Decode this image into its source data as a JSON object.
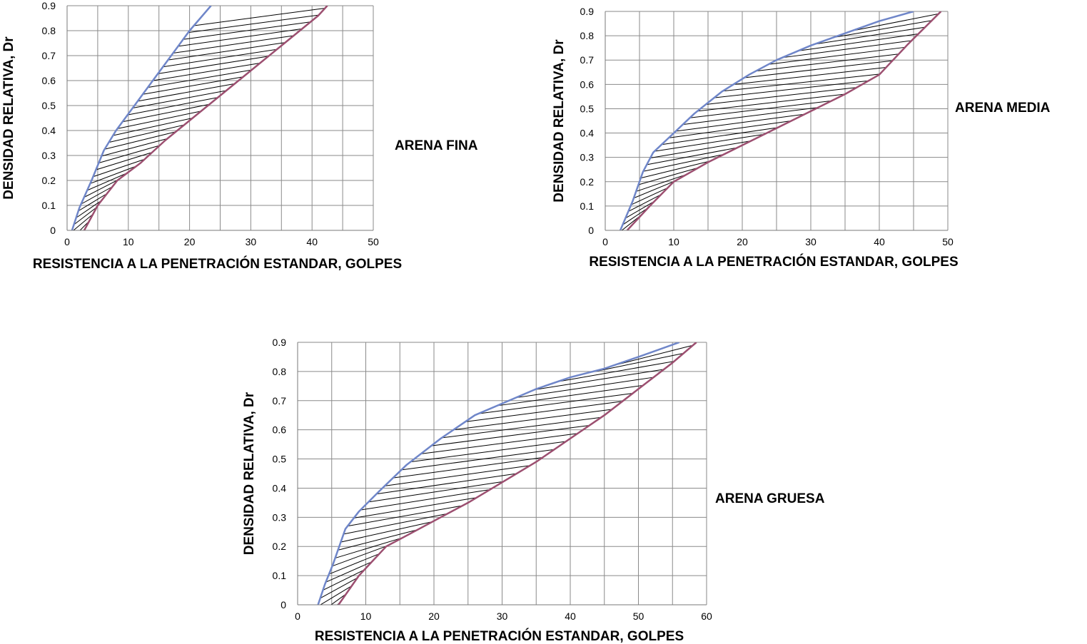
{
  "chart_data": [
    {
      "type": "line",
      "title": "",
      "side_label": "ARENA FINA",
      "xlabel": "RESISTENCIA A LA PENETRACIÓN ESTANDAR, GOLPES",
      "ylabel": "DENSIDAD RELATIVA, Dr",
      "xlim": [
        0,
        50
      ],
      "ylim": [
        0,
        0.9
      ],
      "xticks": [
        "0",
        "10",
        "20",
        "30",
        "40",
        "50"
      ],
      "yticks": [
        "0",
        "0.1",
        "0.2",
        "0.3",
        "0.4",
        "0.5",
        "0.6",
        "0.7",
        "0.8",
        "0.9"
      ],
      "grid": true,
      "hatched_band": true,
      "series": [
        {
          "color": "#6f86c9",
          "x": [
            0.8,
            2,
            4,
            6,
            8,
            11,
            14,
            17,
            20,
            23.5
          ],
          "y": [
            0,
            0.09,
            0.2,
            0.32,
            0.4,
            0.5,
            0.6,
            0.7,
            0.8,
            0.9
          ]
        },
        {
          "color": "#9c4f70",
          "x": [
            2.8,
            5,
            8.2,
            12,
            16,
            21,
            26,
            31,
            36,
            41,
            42.5
          ],
          "y": [
            0,
            0.1,
            0.2,
            0.27,
            0.36,
            0.46,
            0.56,
            0.66,
            0.76,
            0.86,
            0.9
          ]
        }
      ]
    },
    {
      "type": "line",
      "title": "",
      "side_label": "ARENA MEDIA",
      "xlabel": "RESISTENCIA A LA PENETRACIÓN ESTANDAR, GOLPES",
      "ylabel": "DENSIDAD RELATIVA, Dr",
      "xlim": [
        0,
        50
      ],
      "ylim": [
        0,
        0.9
      ],
      "xticks": [
        "0",
        "10",
        "20",
        "30",
        "40",
        "50"
      ],
      "yticks": [
        "0",
        "0.1",
        "0.2",
        "0.3",
        "0.4",
        "0.5",
        "0.6",
        "0.7",
        "0.8",
        "0.9"
      ],
      "grid": true,
      "hatched_band": true,
      "series": [
        {
          "color": "#6f86c9",
          "x": [
            2.2,
            4,
            5.5,
            7,
            10,
            13,
            17,
            21,
            25,
            30,
            35,
            40,
            45
          ],
          "y": [
            0,
            0.12,
            0.24,
            0.32,
            0.4,
            0.48,
            0.57,
            0.64,
            0.7,
            0.76,
            0.81,
            0.86,
            0.9
          ]
        },
        {
          "color": "#9c4f70",
          "x": [
            3.2,
            6.5,
            10,
            15,
            20,
            25,
            30,
            35,
            40,
            44,
            49
          ],
          "y": [
            0,
            0.1,
            0.2,
            0.28,
            0.35,
            0.42,
            0.49,
            0.56,
            0.64,
            0.76,
            0.9
          ]
        }
      ]
    },
    {
      "type": "line",
      "title": "",
      "side_label": "ARENA GRUESA",
      "xlabel": "RESISTENCIA A LA PENETRACIÓN ESTANDAR, GOLPES",
      "ylabel": "DENSIDAD RELATIVA, Dr",
      "xlim": [
        0,
        60
      ],
      "ylim": [
        0,
        0.9
      ],
      "xticks": [
        "0",
        "10",
        "20",
        "30",
        "40",
        "50",
        "60"
      ],
      "yticks": [
        "0",
        "0.1",
        "0.2",
        "0.3",
        "0.4",
        "0.5",
        "0.6",
        "0.7",
        "0.8",
        "0.9"
      ],
      "grid": true,
      "hatched_band": true,
      "series": [
        {
          "color": "#6f86c9",
          "x": [
            3,
            4,
            5.2,
            7,
            9,
            12,
            16,
            21,
            26,
            30,
            35,
            40,
            45,
            50,
            56
          ],
          "y": [
            0,
            0.07,
            0.14,
            0.26,
            0.32,
            0.39,
            0.48,
            0.57,
            0.65,
            0.69,
            0.74,
            0.78,
            0.81,
            0.85,
            0.9
          ]
        },
        {
          "color": "#9c4f70",
          "x": [
            6,
            9,
            13,
            17,
            21,
            25,
            30,
            35,
            40,
            45,
            50,
            55,
            58.5
          ],
          "y": [
            0,
            0.1,
            0.2,
            0.25,
            0.3,
            0.35,
            0.42,
            0.49,
            0.57,
            0.65,
            0.74,
            0.83,
            0.9
          ]
        }
      ]
    }
  ]
}
